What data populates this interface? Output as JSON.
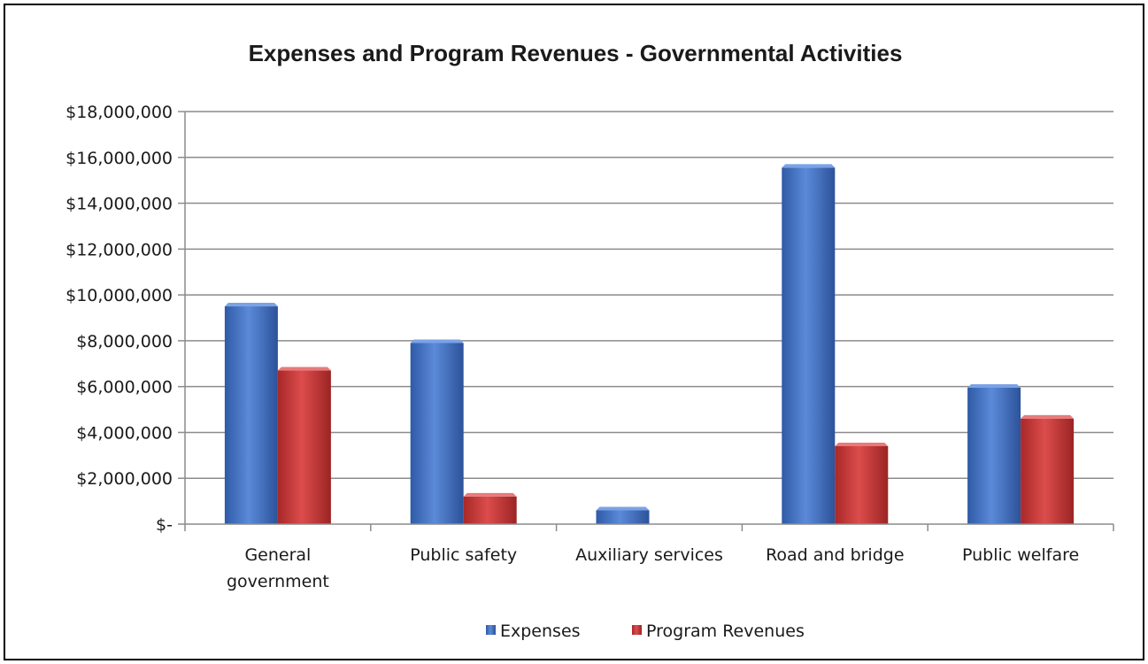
{
  "chart_data": {
    "type": "bar",
    "title": "Expenses and Program Revenues - Governmental Activities",
    "categories": [
      [
        "General",
        "government"
      ],
      [
        "Public safety"
      ],
      [
        "Auxiliary services"
      ],
      [
        "Road and bridge"
      ],
      [
        "Public welfare"
      ]
    ],
    "series": [
      {
        "name": "Expenses",
        "color": "#4a78c8",
        "values": [
          9500000,
          7900000,
          600000,
          15550000,
          5950000
        ]
      },
      {
        "name": "Program Revenues",
        "color": "#c83838",
        "values": [
          6700000,
          1200000,
          0,
          3400000,
          4600000
        ]
      }
    ],
    "ylim": [
      0,
      18000000
    ],
    "yticks": [
      0,
      2000000,
      4000000,
      6000000,
      8000000,
      10000000,
      12000000,
      14000000,
      16000000,
      18000000
    ],
    "ytick_labels": [
      "$-",
      "$2,000,000",
      "$4,000,000",
      "$6,000,000",
      "$8,000,000",
      "$10,000,000",
      "$12,000,000",
      "$14,000,000",
      "$16,000,000",
      "$18,000,000"
    ],
    "grid": true,
    "legend_position": "bottom"
  }
}
